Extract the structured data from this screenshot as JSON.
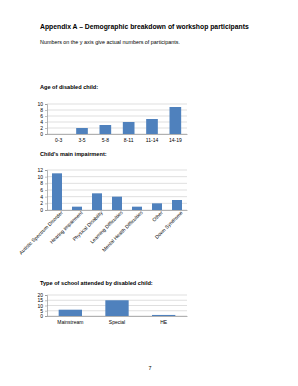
{
  "heading": "Appendix A – Demographic breakdown of workshop participants",
  "note": "Numbers on the y axis give actual numbers of participants.",
  "page_number": "7",
  "chart_data": [
    {
      "type": "bar",
      "title": "Age of disabled child:",
      "categories": [
        "0-3",
        "3-5",
        "5-8",
        "8-11",
        "11-14",
        "14-19"
      ],
      "values": [
        0,
        2,
        3,
        4,
        5,
        9
      ],
      "color": "#4f81bd",
      "ylim": [
        0,
        10
      ],
      "yticks": [
        0,
        2,
        4,
        6,
        8,
        10
      ],
      "grid": true
    },
    {
      "type": "bar",
      "title": "Child's main impairment:",
      "categories": [
        "Autistic Spectrum Disorder",
        "Hearing Impairment",
        "Physical Disability",
        "Learning Difficulties",
        "Mental Health Difficulties",
        "Other",
        "Down Syndrome"
      ],
      "values": [
        11,
        1,
        5,
        4,
        1,
        2,
        3
      ],
      "color": "#4f81bd",
      "ylim": [
        0,
        12
      ],
      "yticks": [
        0,
        2,
        4,
        6,
        8,
        10,
        12
      ],
      "grid": true
    },
    {
      "type": "bar",
      "title": "Type of school attended by disabled child:",
      "categories": [
        "Mainstream",
        "Special",
        "HE"
      ],
      "values": [
        6,
        15,
        1
      ],
      "color": "#4f81bd",
      "ylim": [
        0,
        20
      ],
      "yticks": [
        0,
        5,
        10,
        15,
        20
      ],
      "grid": true
    }
  ]
}
